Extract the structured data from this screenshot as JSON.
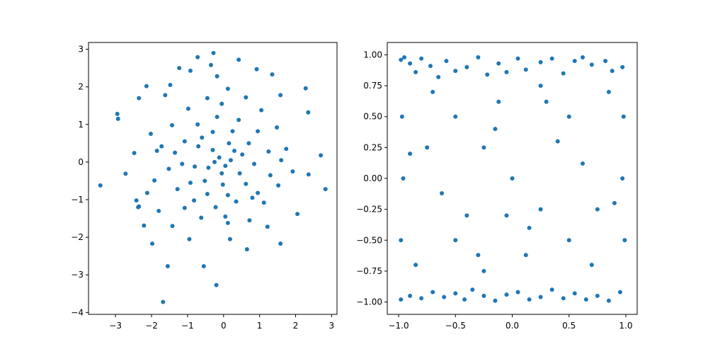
{
  "chart_data": [
    {
      "type": "scatter",
      "panel": "left",
      "title": "",
      "xlabel": "",
      "ylabel": "",
      "xlim": [
        -3.75,
        3.15
      ],
      "ylim": [
        -4.05,
        3.18
      ],
      "xticks": [
        -3,
        -2,
        -1,
        0,
        1,
        2,
        3
      ],
      "xtick_labels": [
        "−3",
        "−2",
        "−1",
        "0",
        "1",
        "2",
        "3"
      ],
      "yticks": [
        -4,
        -3,
        -2,
        -1,
        0,
        1,
        2,
        3
      ],
      "ytick_labels": [
        "−4",
        "−3",
        "−2",
        "−1",
        "0",
        "1",
        "2",
        "3"
      ],
      "grid": false,
      "legend": "none",
      "marker_color": "#1f77b4",
      "description": "approximately 1000 points drawn from a 2D standard normal distribution",
      "series": [
        {
          "points": [
            [
              -3.42,
              -0.62
            ],
            [
              -2.95,
              1.28
            ],
            [
              -2.93,
              1.15
            ],
            [
              -2.72,
              -0.31
            ],
            [
              -2.48,
              0.24
            ],
            [
              -2.35,
              1.7
            ],
            [
              -2.14,
              2.02
            ],
            [
              -2.21,
              -1.69
            ],
            [
              -1.98,
              -2.17
            ],
            [
              -1.68,
              -3.72
            ],
            [
              -1.55,
              -2.77
            ],
            [
              -2.02,
              0.75
            ],
            [
              -1.62,
              1.78
            ],
            [
              -1.48,
              2.05
            ],
            [
              -1.23,
              2.5
            ],
            [
              -0.92,
              2.43
            ],
            [
              -0.72,
              2.79
            ],
            [
              -0.35,
              2.58
            ],
            [
              -0.18,
              2.28
            ],
            [
              -0.28,
              2.9
            ],
            [
              0.42,
              2.72
            ],
            [
              0.92,
              2.47
            ],
            [
              1.35,
              2.33
            ],
            [
              1.58,
              1.78
            ],
            [
              2.28,
              1.96
            ],
            [
              2.35,
              1.32
            ],
            [
              2.7,
              0.18
            ],
            [
              2.83,
              -0.72
            ],
            [
              2.36,
              -0.33
            ],
            [
              2.05,
              -1.38
            ],
            [
              1.58,
              -2.17
            ],
            [
              1.22,
              -1.72
            ],
            [
              0.65,
              -2.32
            ],
            [
              0.18,
              -2.05
            ],
            [
              -0.2,
              -3.27
            ],
            [
              -0.55,
              -2.77
            ],
            [
              -0.95,
              -2.05
            ],
            [
              -2.42,
              -1.02
            ],
            [
              -2.37,
              -1.2
            ],
            [
              -2.35,
              -1.18
            ],
            [
              -1.92,
              -0.49
            ],
            [
              -1.85,
              0.3
            ],
            [
              -2.12,
              -0.82
            ],
            [
              -1.42,
              -1.7
            ],
            [
              -1.08,
              -1.22
            ],
            [
              -0.62,
              -1.48
            ],
            [
              0.12,
              -1.62
            ],
            [
              0.72,
              -1.55
            ],
            [
              1.12,
              -1.08
            ],
            [
              1.52,
              -0.62
            ],
            [
              1.92,
              -0.25
            ],
            [
              1.74,
              0.35
            ],
            [
              1.48,
              0.92
            ],
            [
              1.05,
              1.38
            ],
            [
              0.62,
              1.72
            ],
            [
              0.12,
              1.95
            ],
            [
              -0.45,
              1.7
            ],
            [
              -0.98,
              1.42
            ],
            [
              -1.43,
              0.98
            ],
            [
              -1.72,
              0.42
            ],
            [
              -1.52,
              -0.18
            ],
            [
              -1.28,
              -0.72
            ],
            [
              -0.82,
              -1.02
            ],
            [
              -0.22,
              -1.2
            ],
            [
              0.35,
              -1.05
            ],
            [
              0.95,
              -0.82
            ],
            [
              1.3,
              -0.35
            ],
            [
              1.25,
              0.28
            ],
            [
              0.95,
              0.82
            ],
            [
              0.42,
              1.12
            ],
            [
              -0.18,
              1.2
            ],
            [
              -0.72,
              1.0
            ],
            [
              -1.08,
              0.55
            ],
            [
              -1.15,
              -0.05
            ],
            [
              -0.92,
              -0.55
            ],
            [
              -0.45,
              -0.85
            ],
            [
              0.12,
              -0.88
            ],
            [
              0.62,
              -0.58
            ],
            [
              0.85,
              -0.05
            ],
            [
              0.7,
              0.5
            ],
            [
              0.25,
              0.82
            ],
            [
              -0.3,
              0.8
            ],
            [
              -0.7,
              0.42
            ],
            [
              -0.8,
              -0.12
            ],
            [
              -0.52,
              -0.5
            ],
            [
              -0.02,
              -0.6
            ],
            [
              0.45,
              -0.3
            ],
            [
              0.52,
              0.2
            ],
            [
              0.15,
              0.5
            ],
            [
              -0.3,
              0.32
            ],
            [
              -0.42,
              -0.15
            ],
            [
              -0.05,
              -0.3
            ],
            [
              0.2,
              0.05
            ],
            [
              -0.12,
              0.12
            ],
            [
              0.05,
              -0.1
            ],
            [
              -0.25,
              0.0
            ],
            [
              0.3,
              0.3
            ],
            [
              -0.6,
              0.65
            ],
            [
              0.8,
              -0.95
            ],
            [
              -1.35,
              0.25
            ],
            [
              1.6,
              0.05
            ],
            [
              -0.05,
              1.55
            ],
            [
              0.05,
              -1.45
            ],
            [
              -1.8,
              -1.3
            ]
          ]
        }
      ]
    },
    {
      "type": "scatter",
      "panel": "right",
      "title": "",
      "xlabel": "",
      "ylabel": "",
      "xlim": [
        -1.1,
        1.1
      ],
      "ylim": [
        -1.1,
        1.1
      ],
      "xticks": [
        -1.0,
        -0.5,
        0.0,
        0.5,
        1.0
      ],
      "xtick_labels": [
        "−1.0",
        "−0.5",
        "0.0",
        "0.5",
        "1.0"
      ],
      "yticks": [
        -1.0,
        -0.75,
        -0.5,
        -0.25,
        0.0,
        0.25,
        0.5,
        0.75,
        1.0
      ],
      "ytick_labels": [
        "−1.00",
        "−0.75",
        "−0.50",
        "−0.25",
        "0.00",
        "0.25",
        "0.50",
        "0.75",
        "1.00"
      ],
      "grid": false,
      "legend": "none",
      "marker_color": "#1f77b4",
      "description": "approximately 1000 points drawn uniformly from the square [-1, 1] x [-1, 1]",
      "series": [
        {
          "points": [
            [
              -0.98,
              0.96
            ],
            [
              -0.95,
              0.98
            ],
            [
              -0.9,
              0.93
            ],
            [
              -0.85,
              0.86
            ],
            [
              -0.8,
              0.97
            ],
            [
              -0.72,
              0.91
            ],
            [
              -0.65,
              0.82
            ],
            [
              -0.58,
              0.95
            ],
            [
              -0.5,
              0.87
            ],
            [
              -0.4,
              0.9
            ],
            [
              -0.3,
              0.98
            ],
            [
              -0.22,
              0.84
            ],
            [
              -0.12,
              0.93
            ],
            [
              -0.05,
              0.86
            ],
            [
              0.05,
              0.97
            ],
            [
              0.12,
              0.88
            ],
            [
              0.25,
              0.94
            ],
            [
              0.35,
              0.97
            ],
            [
              0.45,
              0.85
            ],
            [
              0.55,
              0.95
            ],
            [
              0.62,
              0.98
            ],
            [
              0.7,
              0.92
            ],
            [
              0.82,
              0.95
            ],
            [
              0.88,
              0.87
            ],
            [
              0.97,
              0.9
            ],
            [
              -0.98,
              -0.98
            ],
            [
              -0.9,
              -0.95
            ],
            [
              -0.8,
              -0.97
            ],
            [
              -0.7,
              -0.92
            ],
            [
              -0.6,
              -0.96
            ],
            [
              -0.5,
              -0.93
            ],
            [
              -0.42,
              -0.98
            ],
            [
              -0.35,
              -0.9
            ],
            [
              -0.25,
              -0.95
            ],
            [
              -0.15,
              -0.99
            ],
            [
              -0.05,
              -0.94
            ],
            [
              0.05,
              -0.92
            ],
            [
              0.15,
              -0.98
            ],
            [
              0.25,
              -0.96
            ],
            [
              0.35,
              -0.9
            ],
            [
              0.45,
              -0.97
            ],
            [
              0.55,
              -0.93
            ],
            [
              0.65,
              -0.98
            ],
            [
              0.75,
              -0.95
            ],
            [
              0.85,
              -0.99
            ],
            [
              0.95,
              -0.92
            ],
            [
              -0.97,
              0.5
            ],
            [
              -0.96,
              0.0
            ],
            [
              -0.98,
              -0.5
            ],
            [
              0.98,
              0.5
            ],
            [
              0.97,
              0.0
            ],
            [
              0.99,
              -0.5
            ],
            [
              -0.5,
              0.5
            ],
            [
              0.5,
              0.5
            ],
            [
              -0.5,
              -0.5
            ],
            [
              0.5,
              -0.5
            ],
            [
              0.0,
              0.0
            ],
            [
              -0.25,
              0.25
            ],
            [
              0.25,
              -0.25
            ],
            [
              -0.75,
              0.25
            ],
            [
              0.75,
              -0.25
            ],
            [
              -0.25,
              -0.75
            ],
            [
              0.25,
              0.75
            ],
            [
              -0.62,
              -0.12
            ],
            [
              0.62,
              0.12
            ],
            [
              -0.12,
              0.62
            ],
            [
              0.12,
              -0.62
            ],
            [
              -0.85,
              -0.7
            ],
            [
              0.85,
              0.7
            ],
            [
              -0.4,
              -0.3
            ],
            [
              0.4,
              0.3
            ],
            [
              -0.15,
              0.4
            ],
            [
              0.15,
              -0.4
            ],
            [
              -0.7,
              0.7
            ],
            [
              0.7,
              -0.7
            ],
            [
              -0.3,
              -0.62
            ],
            [
              0.3,
              0.62
            ],
            [
              -0.9,
              0.2
            ],
            [
              0.9,
              -0.2
            ],
            [
              -0.05,
              -0.3
            ]
          ]
        }
      ]
    }
  ]
}
